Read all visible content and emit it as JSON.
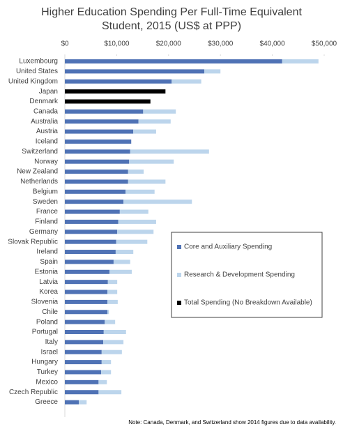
{
  "chart_data": {
    "type": "stacked-barh",
    "title": "Higher Education Spending Per Full-Time Equivalent Student, 2015 (US$ at PPP)",
    "note": "Note: Canada, Denmark, and Switzerland show 2014 figures due to data availability.",
    "categories": [
      "Luxembourg",
      "United States",
      "United Kingdom",
      "Japan",
      "Denmark",
      "Canada",
      "Australia",
      "Austria",
      "Iceland",
      "Switzerland",
      "Norway",
      "New Zealand",
      "Netherlands",
      "Belgium",
      "Sweden",
      "France",
      "Finland",
      "Germany",
      "Slovak Republic",
      "Ireland",
      "Spain",
      "Estonia",
      "Latvia",
      "Korea",
      "Slovenia",
      "Chile",
      "Poland",
      "Portugal",
      "Italy",
      "Israel",
      "Hungary",
      "Turkey",
      "Mexico",
      "Czech Republic",
      "Greece"
    ],
    "series": [
      {
        "name": "Core and Auxiliary Spending",
        "color": "#4f72b5",
        "values": [
          41900,
          26900,
          20600,
          null,
          null,
          15100,
          14200,
          13200,
          12800,
          12600,
          12400,
          12200,
          12200,
          11700,
          11300,
          10600,
          10300,
          10100,
          9900,
          9800,
          9400,
          8600,
          8300,
          8200,
          8200,
          8200,
          7700,
          7500,
          7400,
          7100,
          7100,
          7000,
          6500,
          6500,
          2700
        ]
      },
      {
        "name": "Research & Development Spending",
        "color": "#bcd5ec",
        "values": [
          7000,
          3100,
          5700,
          null,
          null,
          6300,
          6200,
          4400,
          null,
          15200,
          8600,
          3000,
          7200,
          5600,
          13200,
          5500,
          7300,
          7000,
          6000,
          3400,
          3200,
          4300,
          1800,
          1900,
          2000,
          300,
          2000,
          4300,
          3900,
          3900,
          1800,
          1900,
          1600,
          4400,
          1500
        ]
      },
      {
        "name": "Total Spending (No Breakdown Available)",
        "color": "#000000",
        "values": [
          null,
          null,
          null,
          19400,
          16500,
          null,
          null,
          null,
          null,
          null,
          null,
          null,
          null,
          null,
          null,
          null,
          null,
          null,
          null,
          null,
          null,
          null,
          null,
          null,
          null,
          null,
          null,
          null,
          null,
          null,
          null,
          null,
          null,
          null,
          null
        ]
      }
    ],
    "xlim": [
      0,
      50000
    ],
    "xticks": [
      {
        "value": 0,
        "label": "$0"
      },
      {
        "value": 10000,
        "label": "$10,000"
      },
      {
        "value": 20000,
        "label": "$20,000"
      },
      {
        "value": 30000,
        "label": "$30,000"
      },
      {
        "value": 40000,
        "label": "$40,000"
      },
      {
        "value": 50000,
        "label": "$50,000"
      }
    ]
  }
}
